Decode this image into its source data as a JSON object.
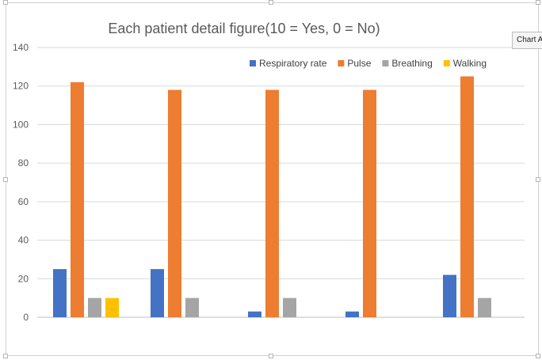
{
  "tooltip": {
    "label": "Chart Area"
  },
  "chart_data": {
    "type": "bar",
    "title": "Each patient detail figure(10 = Yes, 0 = No)",
    "categories": [
      "",
      "",
      "",
      "",
      ""
    ],
    "series": [
      {
        "name": "Respiratory rate",
        "color": "#4472C4",
        "values": [
          25,
          25,
          3,
          3,
          22
        ]
      },
      {
        "name": "Pulse",
        "color": "#ED7D31",
        "values": [
          122,
          118,
          118,
          118,
          125
        ]
      },
      {
        "name": "Breathing",
        "color": "#A5A5A5",
        "values": [
          10,
          10,
          10,
          0,
          10
        ]
      },
      {
        "name": "Walking",
        "color": "#FFC000",
        "values": [
          10,
          0,
          0,
          0,
          0
        ]
      }
    ],
    "ylim": [
      0,
      140
    ],
    "yticks": [
      "0",
      "20",
      "40",
      "60",
      "80",
      "100",
      "120",
      "140"
    ],
    "grid": true,
    "legend_position": "top-right"
  }
}
